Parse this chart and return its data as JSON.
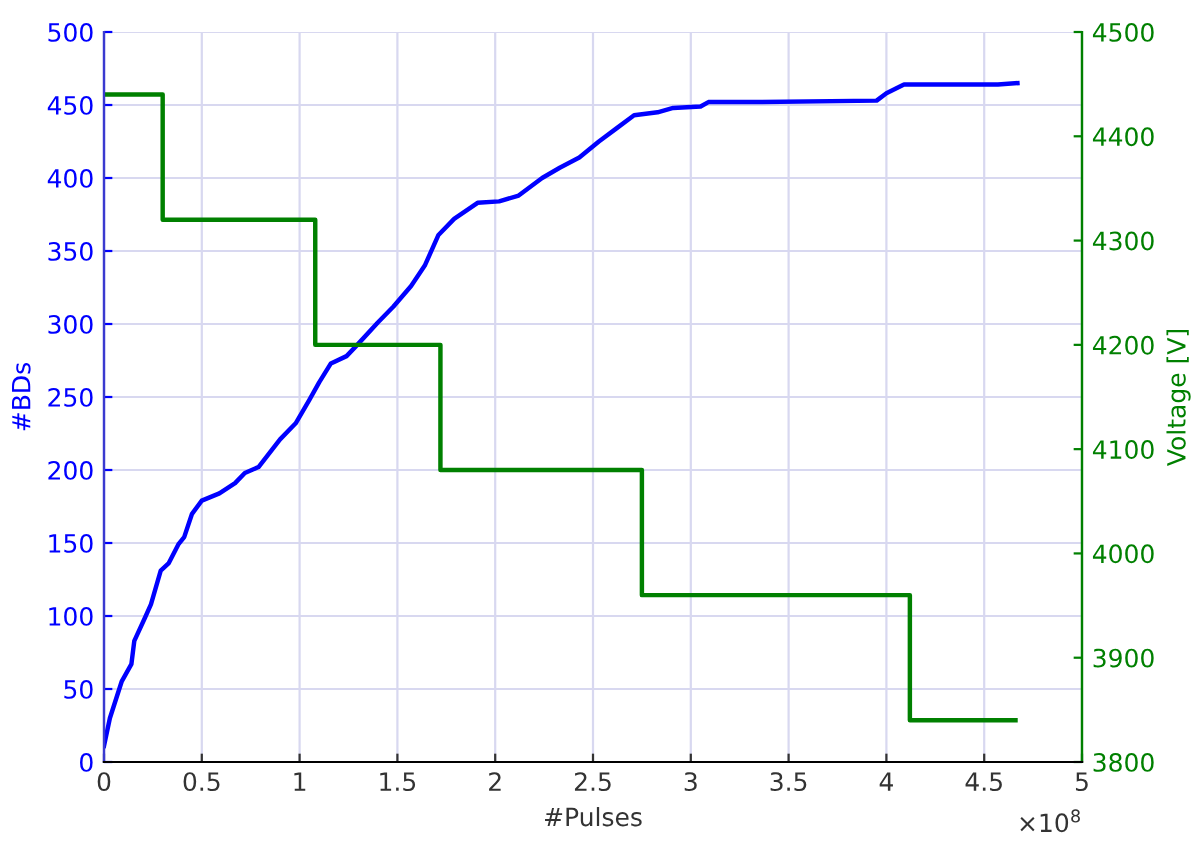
{
  "chart_data": {
    "type": "line",
    "xlabel": "#Pulses",
    "ylabel": "#BDs",
    "y2label": "Voltage [V]",
    "annotations": [
      "×10$^{8}$"
    ],
    "xlim": [
      0,
      5
    ],
    "xticks": [
      0,
      0.5,
      1,
      1.5,
      2,
      2.5,
      3,
      3.5,
      4,
      4.5,
      5
    ],
    "ylim": [
      0,
      500
    ],
    "yticks": [
      0,
      50,
      100,
      150,
      200,
      250,
      300,
      350,
      400,
      450,
      500
    ],
    "y2lim": [
      3800,
      4500
    ],
    "y2ticks": [
      3800,
      3900,
      4000,
      4100,
      4200,
      4300,
      4400,
      4500
    ],
    "grid": true,
    "series": [
      {
        "color": "#0000ff",
        "x": [
          0,
          0.03,
          0.09,
          0.14,
          0.155,
          0.21,
          0.24,
          0.29,
          0.33,
          0.38,
          0.41,
          0.45,
          0.5,
          0.59,
          0.67,
          0.72,
          0.79,
          0.9,
          0.98,
          1.05,
          1.1,
          1.16,
          1.24,
          1.29,
          1.4,
          1.48,
          1.57,
          1.64,
          1.71,
          1.79,
          1.91,
          2.02,
          2.12,
          2.24,
          2.33,
          2.43,
          2.53,
          2.62,
          2.71,
          2.83,
          2.91,
          3.05,
          3.09,
          3.33,
          3.95,
          4.0,
          4.09,
          4.57,
          4.67
        ],
        "values": [
          11,
          30,
          55,
          67,
          83,
          99,
          108,
          131,
          136,
          149,
          154,
          170,
          179,
          184,
          191,
          198,
          202,
          221,
          232,
          248,
          260,
          273,
          278,
          285,
          301,
          312,
          326,
          340,
          361,
          372,
          383,
          384,
          388,
          400,
          407,
          414,
          425,
          434,
          443,
          445,
          448,
          449,
          452,
          452,
          453,
          458,
          464,
          464,
          465
        ]
      },
      {
        "type": "step",
        "axis": "y2",
        "color": "#008000",
        "x": [
          0,
          0.3,
          1.08,
          1.72,
          2.75,
          4.12,
          4.66
        ],
        "values": [
          4440,
          4320,
          4200,
          4080,
          3960,
          3840,
          3840
        ]
      }
    ]
  }
}
